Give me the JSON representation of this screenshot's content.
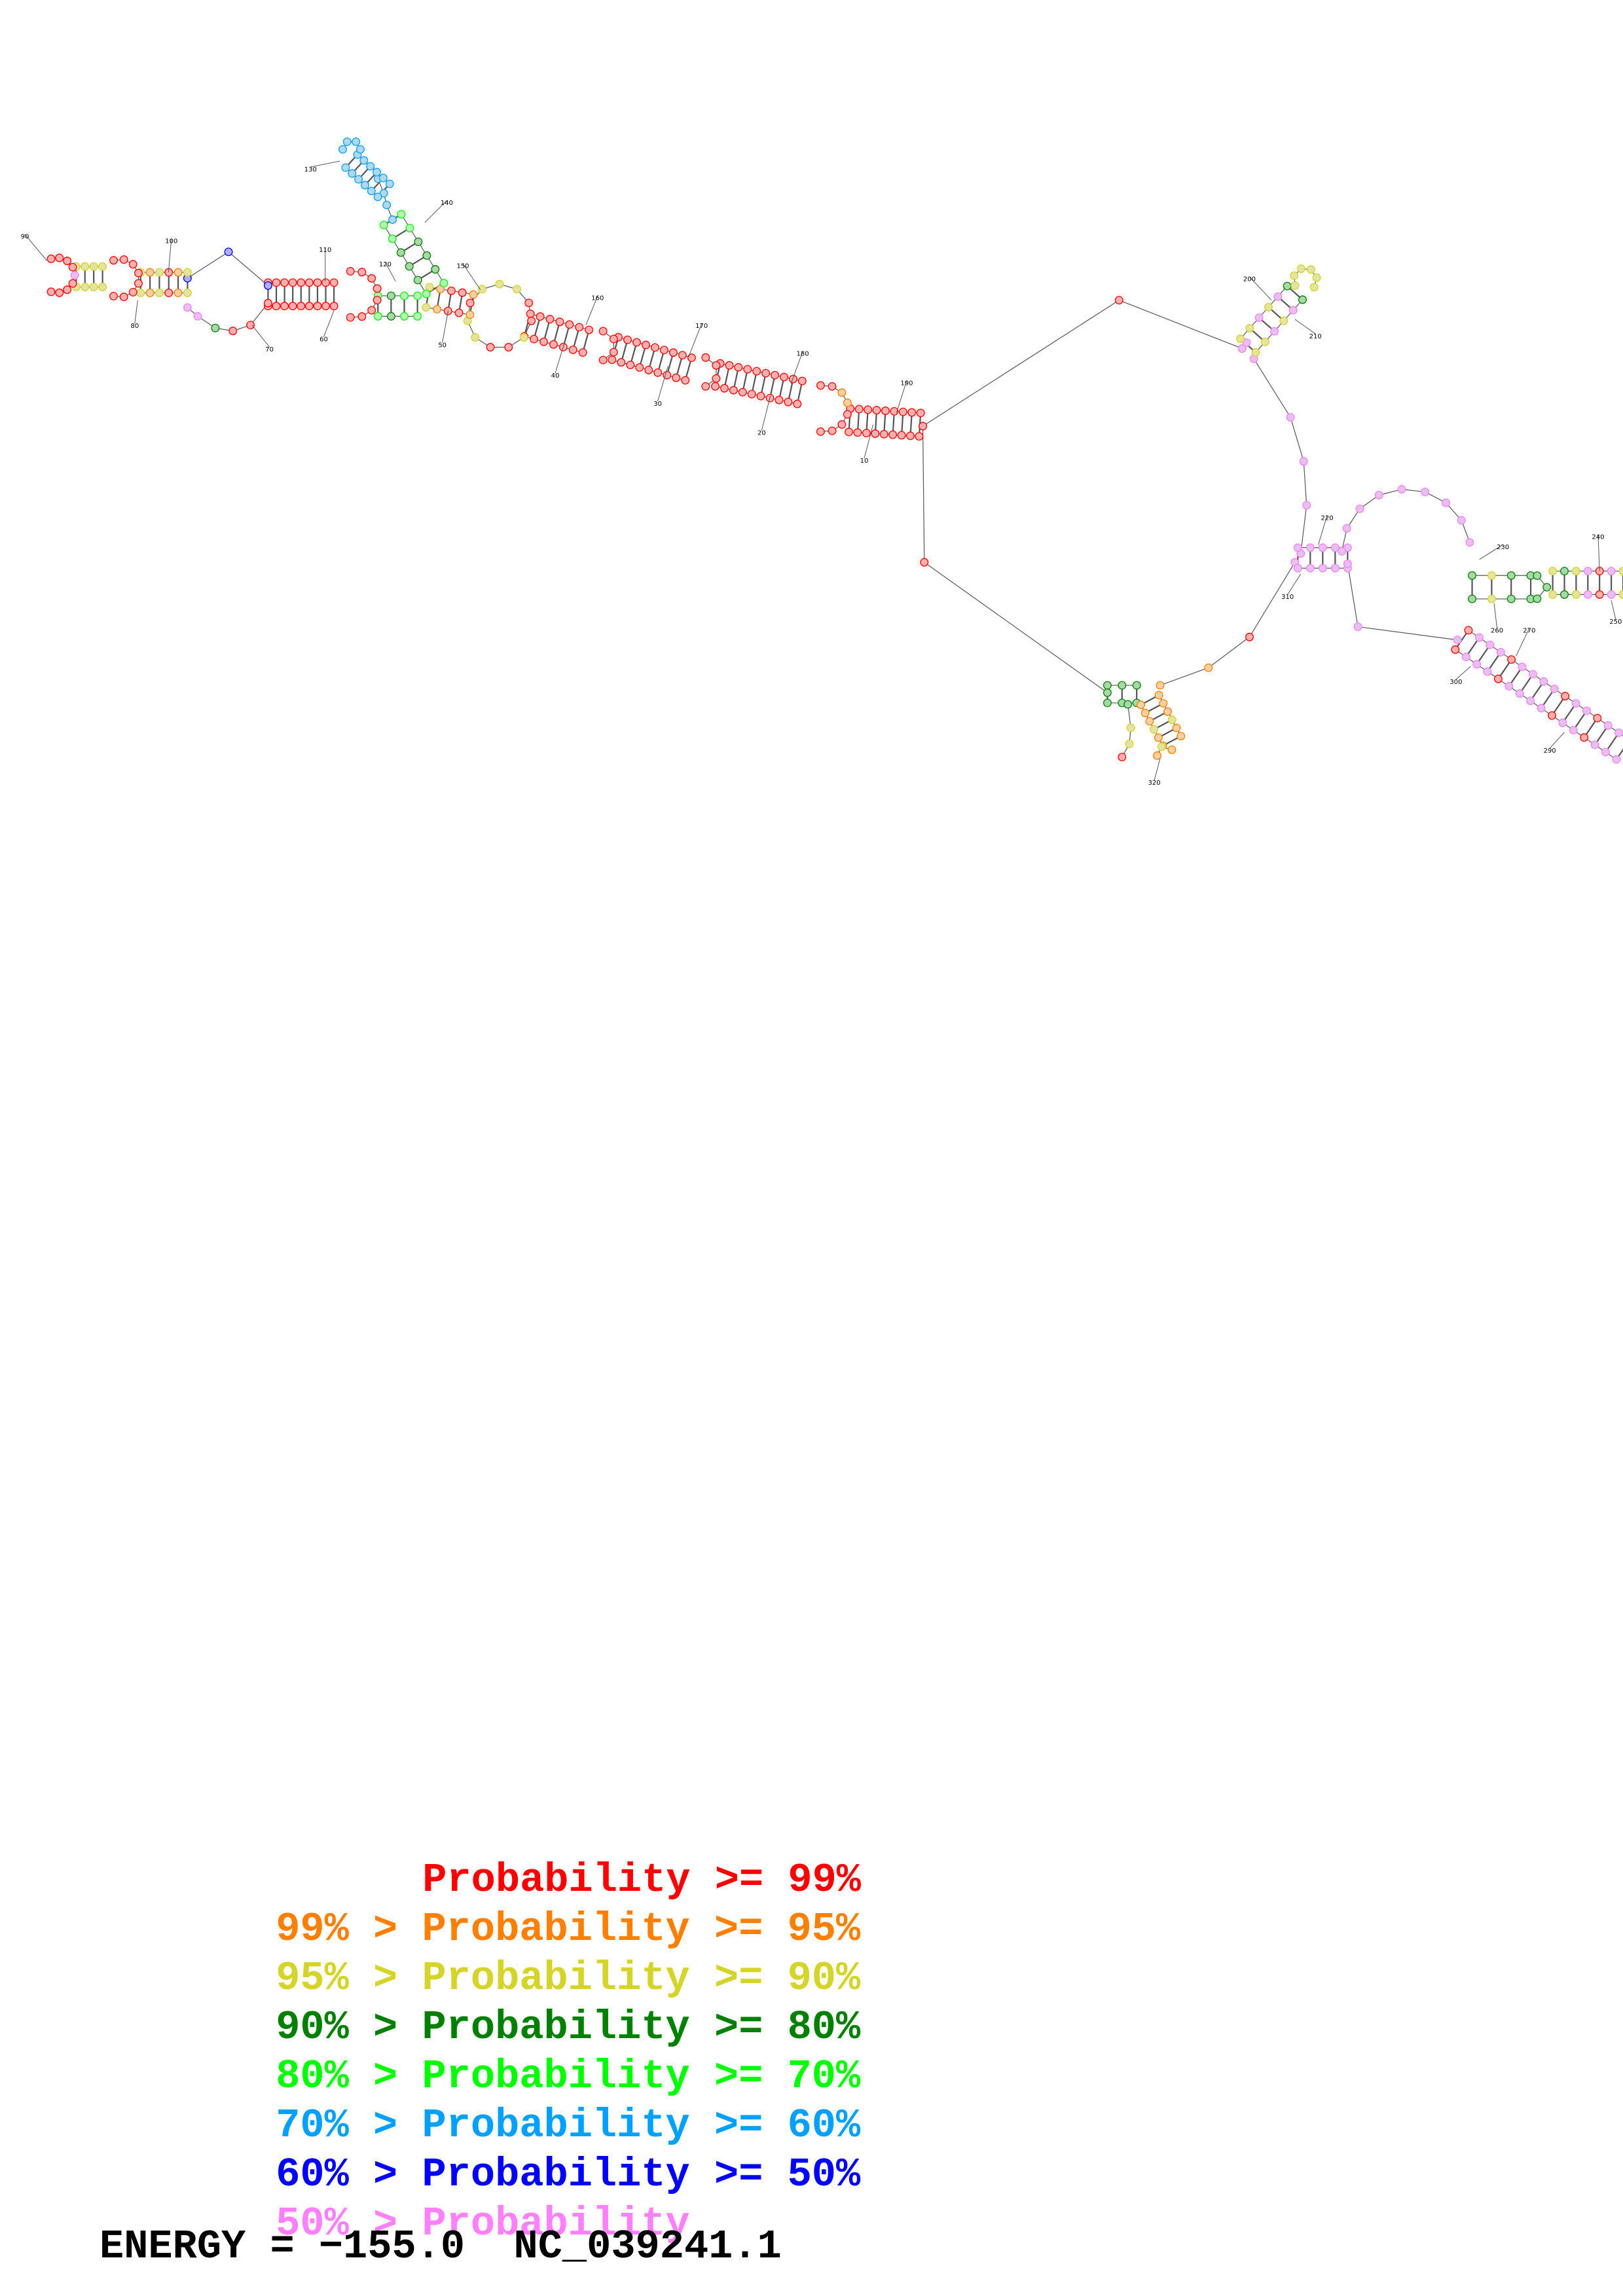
{
  "diagram": {
    "type": "rna-secondary-structure",
    "position_labels": [
      "10",
      "20",
      "30",
      "40",
      "50",
      "60",
      "70",
      "80",
      "90",
      "100",
      "110",
      "120",
      "130",
      "140",
      "150",
      "160",
      "170",
      "180",
      "190",
      "200",
      "210",
      "220",
      "230",
      "240",
      "250",
      "260",
      "270",
      "290",
      "300",
      "310",
      "320"
    ],
    "colors": {
      "p99": "#ff0000",
      "p95": "#ff8000",
      "p90": "#d4d42a",
      "p80": "#008000",
      "p70": "#00ff00",
      "p60": "#00a0ff",
      "p50": "#0000ff",
      "below50": "#ff80ff"
    }
  },
  "legend": [
    {
      "low": "",
      "sep": "",
      "label": "Probability",
      "high": ">= 99%",
      "color": "#ff0000"
    },
    {
      "low": "99%",
      "sep": ">",
      "label": "Probability",
      "high": ">= 95%",
      "color": "#ff8000"
    },
    {
      "low": "95%",
      "sep": ">",
      "label": "Probability",
      "high": ">= 90%",
      "color": "#d4d42a"
    },
    {
      "low": "90%",
      "sep": ">",
      "label": "Probability",
      "high": ">= 80%",
      "color": "#008000"
    },
    {
      "low": "80%",
      "sep": ">",
      "label": "Probability",
      "high": ">= 70%",
      "color": "#00ff00"
    },
    {
      "low": "70%",
      "sep": ">",
      "label": "Probability",
      "high": ">= 60%",
      "color": "#00a0ff"
    },
    {
      "low": "60%",
      "sep": ">",
      "label": "Probability",
      "high": ">= 50%",
      "color": "#0000ff"
    },
    {
      "low": "50%",
      "sep": ">",
      "label": "Probability",
      "high": "",
      "color": "#ff80ff"
    }
  ],
  "energy": {
    "label": "ENERGY = −155.0",
    "sequence_id": "NC_039241.1"
  }
}
